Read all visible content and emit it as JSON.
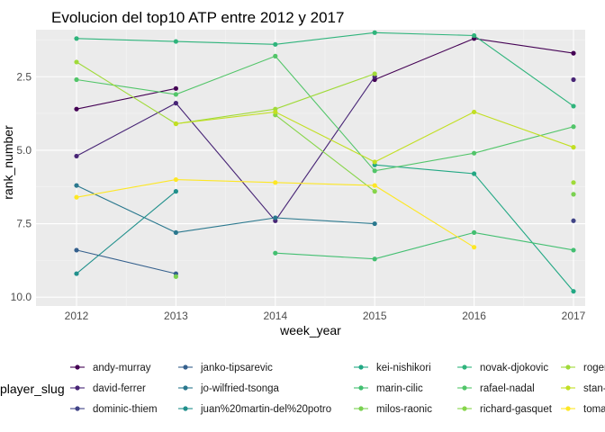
{
  "chart_data": {
    "type": "line",
    "title": "Evolucion del top10 ATP entre 2012 y 2017",
    "xlabel": "week_year",
    "ylabel": "rank_number",
    "x": [
      2012,
      2013,
      2014,
      2015,
      2016,
      2017
    ],
    "x_ticks": [
      "2012",
      "2013",
      "2014",
      "2015",
      "2016",
      "2017"
    ],
    "y_ticks": [
      "2.5",
      "5.0",
      "7.5",
      "10.0"
    ],
    "ylim": [
      0.9,
      10.3
    ],
    "y_reversed": true,
    "grid": true,
    "legend_title": "player_slug",
    "legend_position": "bottom",
    "series": [
      {
        "name": "andy-murray",
        "color": "#440154",
        "values": [
          3.6,
          2.9,
          null,
          2.6,
          1.2,
          1.7
        ]
      },
      {
        "name": "david-ferrer",
        "color": "#482576",
        "values": [
          5.2,
          3.4,
          7.4,
          2.5,
          null,
          2.6
        ]
      },
      {
        "name": "dominic-thiem",
        "color": "#414487",
        "values": [
          null,
          null,
          null,
          null,
          null,
          7.4
        ]
      },
      {
        "name": "janko-tipsarevic",
        "color": "#35608D",
        "values": [
          8.4,
          9.2,
          null,
          null,
          null,
          null
        ]
      },
      {
        "name": "jo-wilfried-tsonga",
        "color": "#2A788E",
        "values": [
          6.2,
          7.8,
          7.3,
          7.5,
          null,
          null
        ]
      },
      {
        "name": "juan%20martin-del%20potro",
        "color": "#21908C",
        "values": [
          9.2,
          6.4,
          null,
          null,
          null,
          null
        ]
      },
      {
        "name": "kei-nishikori",
        "color": "#22A884",
        "values": [
          null,
          null,
          null,
          5.5,
          5.8,
          9.8
        ]
      },
      {
        "name": "marin-cilic",
        "color": "#43BF71",
        "values": [
          null,
          null,
          8.5,
          8.7,
          7.8,
          8.4
        ]
      },
      {
        "name": "milos-raonic",
        "color": "#7AD151",
        "values": [
          null,
          9.3,
          null,
          null,
          null,
          6.5
        ]
      },
      {
        "name": "novak-djokovic",
        "color": "#2FB47C",
        "values": [
          1.2,
          1.3,
          1.4,
          1.0,
          1.1,
          3.5
        ]
      },
      {
        "name": "rafael-nadal",
        "color": "#52C569",
        "values": [
          2.6,
          3.1,
          1.8,
          5.7,
          5.1,
          4.2
        ]
      },
      {
        "name": "richard-gasquet",
        "color": "#86D549",
        "values": [
          null,
          null,
          3.8,
          6.4,
          null,
          null
        ]
      },
      {
        "name": "roger-federer",
        "color": "#A0DA39",
        "values": [
          2.0,
          4.1,
          3.6,
          2.4,
          null,
          6.1
        ]
      },
      {
        "name": "stan-wawrinka",
        "color": "#C2DF23",
        "values": [
          null,
          4.1,
          3.7,
          5.4,
          3.7,
          4.9
        ]
      },
      {
        "name": "tomas-berdych",
        "color": "#FDE725",
        "values": [
          6.6,
          6.0,
          6.1,
          6.2,
          8.3,
          null
        ]
      }
    ]
  }
}
